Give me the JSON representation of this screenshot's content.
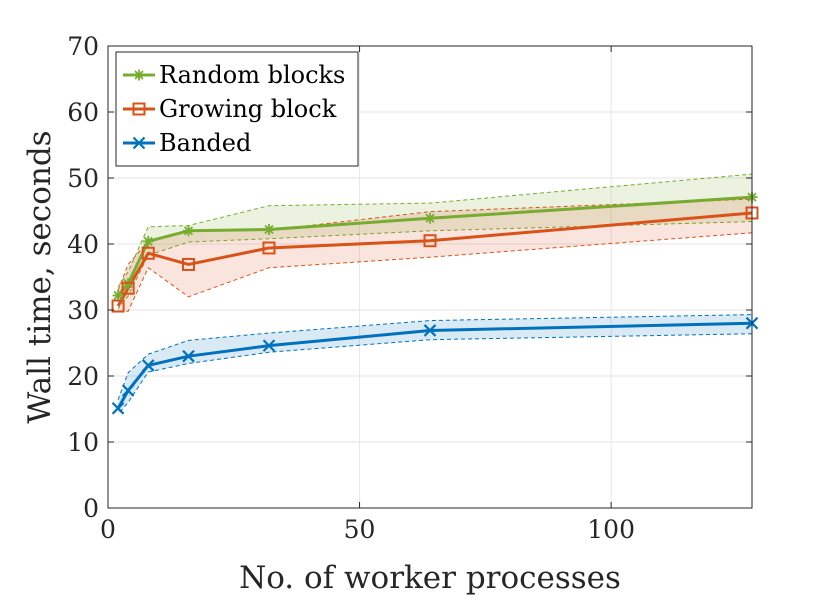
{
  "chart_data": {
    "type": "line",
    "title": "",
    "xlabel": "No. of worker processes",
    "ylabel": "Wall time, seconds",
    "xlim": [
      0,
      128
    ],
    "ylim": [
      0,
      70
    ],
    "xticks": [
      0,
      50,
      100
    ],
    "yticks": [
      0,
      10,
      20,
      30,
      40,
      50,
      60,
      70
    ],
    "xtick_labels": [
      "0",
      "50",
      "100"
    ],
    "ytick_labels": [
      "0",
      "10",
      "20",
      "30",
      "40",
      "50",
      "60",
      "70"
    ],
    "grid": true,
    "legend_position": "top-left",
    "x": [
      2,
      4,
      8,
      16,
      32,
      64,
      128
    ],
    "series": [
      {
        "name": "Random blocks",
        "color": "#77AC30",
        "marker": "asterisk",
        "values": [
          32.2,
          34.0,
          40.4,
          42.0,
          42.2,
          43.9,
          47.1
        ],
        "upper": [
          33.5,
          35.8,
          42.6,
          42.8,
          45.8,
          46.2,
          50.6
        ],
        "lower": [
          30.2,
          32.1,
          38.3,
          40.3,
          40.8,
          42.0,
          43.4
        ]
      },
      {
        "name": "Growing block",
        "color": "#D95319",
        "marker": "square",
        "values": [
          30.6,
          33.3,
          38.6,
          36.9,
          39.4,
          40.5,
          44.7
        ],
        "upper": [
          33.0,
          36.9,
          40.4,
          41.9,
          42.1,
          44.9,
          46.8
        ],
        "lower": [
          29.7,
          29.8,
          36.4,
          32.0,
          36.4,
          38.0,
          41.7
        ]
      },
      {
        "name": "Banded",
        "color": "#0072BD",
        "marker": "x",
        "values": [
          15.1,
          17.8,
          21.6,
          23.0,
          24.6,
          26.9,
          28.0
        ],
        "upper": [
          16.4,
          20.5,
          23.3,
          25.4,
          26.5,
          28.4,
          29.3
        ],
        "lower": [
          14.2,
          16.0,
          20.6,
          21.9,
          23.6,
          25.5,
          26.4
        ]
      }
    ]
  }
}
